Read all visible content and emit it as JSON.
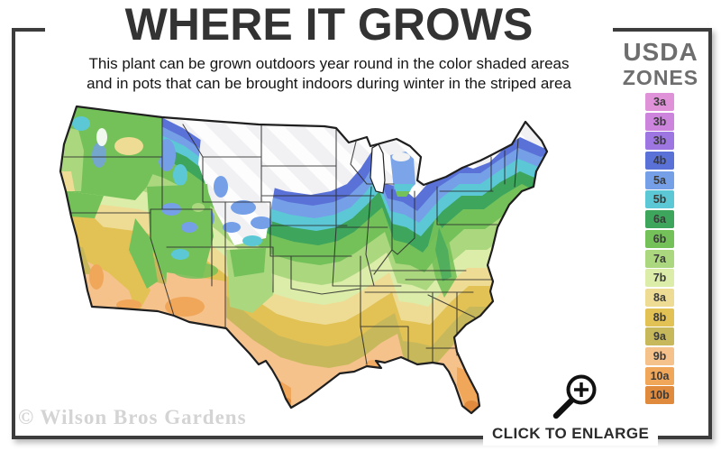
{
  "header": {
    "title": "WHERE IT GROWS",
    "subtitle_line1": "This plant can be grown outdoors year round in the color shaded areas",
    "subtitle_line2": "and in pots that can be brought indoors during winter in the striped area"
  },
  "legend": {
    "title_line1": "USDA",
    "title_line2": "ZONES",
    "zones": [
      {
        "label": "3a",
        "color": "#df92d8"
      },
      {
        "label": "3b",
        "color": "#cc84dd"
      },
      {
        "label": "3b",
        "color": "#9d76e2"
      },
      {
        "label": "4b",
        "color": "#5a72d8"
      },
      {
        "label": "5a",
        "color": "#75a0e8"
      },
      {
        "label": "5b",
        "color": "#5cc8d5"
      },
      {
        "label": "6a",
        "color": "#3ea55c"
      },
      {
        "label": "6b",
        "color": "#74c15a"
      },
      {
        "label": "7a",
        "color": "#abd77f"
      },
      {
        "label": "7b",
        "color": "#dcedaa"
      },
      {
        "label": "8a",
        "color": "#eedc95"
      },
      {
        "label": "8b",
        "color": "#e2c155"
      },
      {
        "label": "9a",
        "color": "#c8b85c"
      },
      {
        "label": "9b",
        "color": "#f5c28c"
      },
      {
        "label": "10a",
        "color": "#f0a75a"
      },
      {
        "label": "10b",
        "color": "#e08a3e"
      }
    ]
  },
  "map": {
    "description": "usda-hardiness-zone-map-continental-united-states",
    "striped_area_color": "#f1f1f3",
    "outline_color": "#1f1f1f"
  },
  "footer": {
    "watermark": "© Wilson Bros Gardens",
    "enlarge_label": "CLICK TO ENLARGE"
  },
  "icons": {
    "enlarge": "magnifier-plus-icon"
  }
}
